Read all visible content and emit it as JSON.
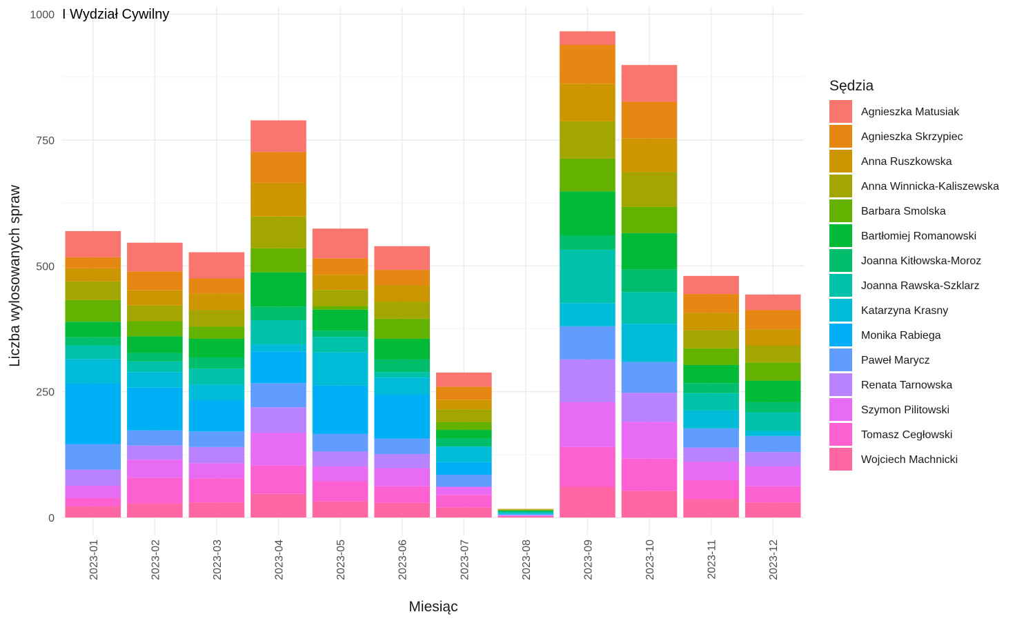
{
  "chart_data": {
    "type": "bar",
    "stacked": true,
    "title": "I Wydział Cywilny",
    "xlabel": "Miesiąc",
    "ylabel": "Liczba wylosowanych spraw",
    "ylim": [
      -35,
      1000
    ],
    "yticks": [
      0,
      250,
      500,
      750,
      1000
    ],
    "grid": true,
    "legend_title": "Sędzia",
    "legend_position": "right",
    "categories": [
      "2023-01",
      "2023-02",
      "2023-03",
      "2023-04",
      "2023-05",
      "2023-06",
      "2023-07",
      "2023-08",
      "2023-09",
      "2023-10",
      "2023-11",
      "2023-12"
    ],
    "series": [
      {
        "name": "Wojciech Machnicki",
        "color": "#FF67A4",
        "values": [
          22,
          28,
          30,
          47,
          32,
          29,
          20,
          2,
          61,
          53,
          37,
          30
        ]
      },
      {
        "name": "Tomasz Cegłowski",
        "color": "#FD61D1",
        "values": [
          17,
          51,
          48,
          56,
          40,
          33,
          25,
          1,
          79,
          64,
          37,
          32
        ]
      },
      {
        "name": "Szymon Pilitowski",
        "color": "#E76BF3",
        "values": [
          24,
          36,
          30,
          65,
          30,
          36,
          16,
          1,
          89,
          73,
          37,
          40
        ]
      },
      {
        "name": "Renata Tarnowska",
        "color": "#B983FF",
        "values": [
          32,
          28,
          32,
          51,
          29,
          28,
          0,
          1,
          85,
          58,
          28,
          28
        ]
      },
      {
        "name": "Paweł Marycz",
        "color": "#619CFF",
        "values": [
          51,
          30,
          31,
          48,
          35,
          31,
          24,
          1,
          66,
          61,
          38,
          32
        ]
      },
      {
        "name": "Monika Rabiega",
        "color": "#00B0F6",
        "values": [
          120,
          85,
          62,
          63,
          96,
          87,
          25,
          1,
          0,
          0,
          0,
          0
        ]
      },
      {
        "name": "Katarzyna Krasny",
        "color": "#00BCD8",
        "values": [
          49,
          31,
          31,
          14,
          66,
          34,
          31,
          2,
          46,
          76,
          36,
          10
        ]
      },
      {
        "name": "Joanna Rawska-Szklarz",
        "color": "#00C1AA",
        "values": [
          27,
          21,
          32,
          48,
          31,
          11,
          0,
          2,
          106,
          63,
          34,
          37
        ]
      },
      {
        "name": "Joanna Kitłowska-Moroz",
        "color": "#00BE6C",
        "values": [
          16,
          17,
          22,
          27,
          12,
          25,
          16,
          2,
          28,
          45,
          20,
          20
        ]
      },
      {
        "name": "Bartłomiej Romanowski",
        "color": "#00BA38",
        "values": [
          31,
          33,
          37,
          68,
          42,
          41,
          17,
          1,
          88,
          72,
          36,
          43
        ]
      },
      {
        "name": "Barbara Smolska",
        "color": "#64B200",
        "values": [
          43,
          30,
          24,
          48,
          7,
          40,
          16,
          1,
          65,
          52,
          33,
          36
        ]
      },
      {
        "name": "Anna Winnicka-Kaliszewska",
        "color": "#A3A500",
        "values": [
          37,
          31,
          33,
          63,
          32,
          34,
          25,
          1,
          74,
          69,
          36,
          34
        ]
      },
      {
        "name": "Anna Ruszkowska",
        "color": "#CD9600",
        "values": [
          26,
          31,
          33,
          67,
          30,
          33,
          19,
          1,
          75,
          67,
          35,
          32
        ]
      },
      {
        "name": "Agnieszka Skrzypiec",
        "color": "#E68613",
        "values": [
          22,
          37,
          30,
          61,
          33,
          30,
          26,
          0,
          77,
          73,
          37,
          38
        ]
      },
      {
        "name": "Agnieszka Matusiak",
        "color": "#F8766D",
        "values": [
          52,
          57,
          52,
          63,
          59,
          47,
          28,
          0,
          27,
          73,
          36,
          31
        ]
      }
    ]
  }
}
